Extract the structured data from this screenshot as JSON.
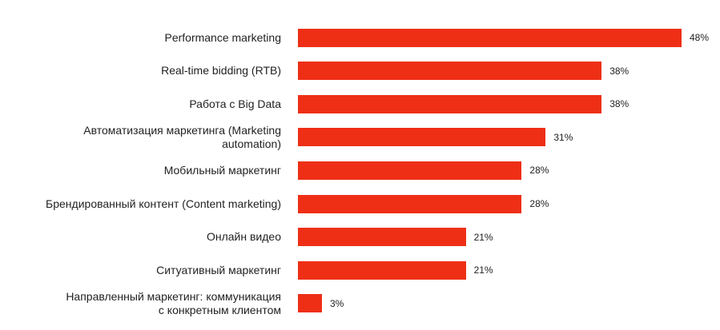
{
  "chart_data": {
    "type": "bar",
    "orientation": "horizontal",
    "bar_color": "#ee2f16",
    "value_suffix": "%",
    "xlim": [
      0,
      50
    ],
    "categories": [
      "Performance marketing",
      "Real-time bidding (RTB)",
      "Работа с Big Data",
      "Автоматизация маркетинга (Marketing\nautomation)",
      "Мобильный маркетинг",
      "Брендированный контент (Content marketing)",
      "Онлайн видео",
      "Ситуативный маркетинг",
      "Направленный маркетинг: коммуникация\nс конкретным клиентом"
    ],
    "values": [
      48,
      38,
      38,
      31,
      28,
      28,
      21,
      21,
      3
    ],
    "value_labels": [
      "48%",
      "38%",
      "38%",
      "31%",
      "28%",
      "28%",
      "21%",
      "21%",
      "3%"
    ]
  }
}
